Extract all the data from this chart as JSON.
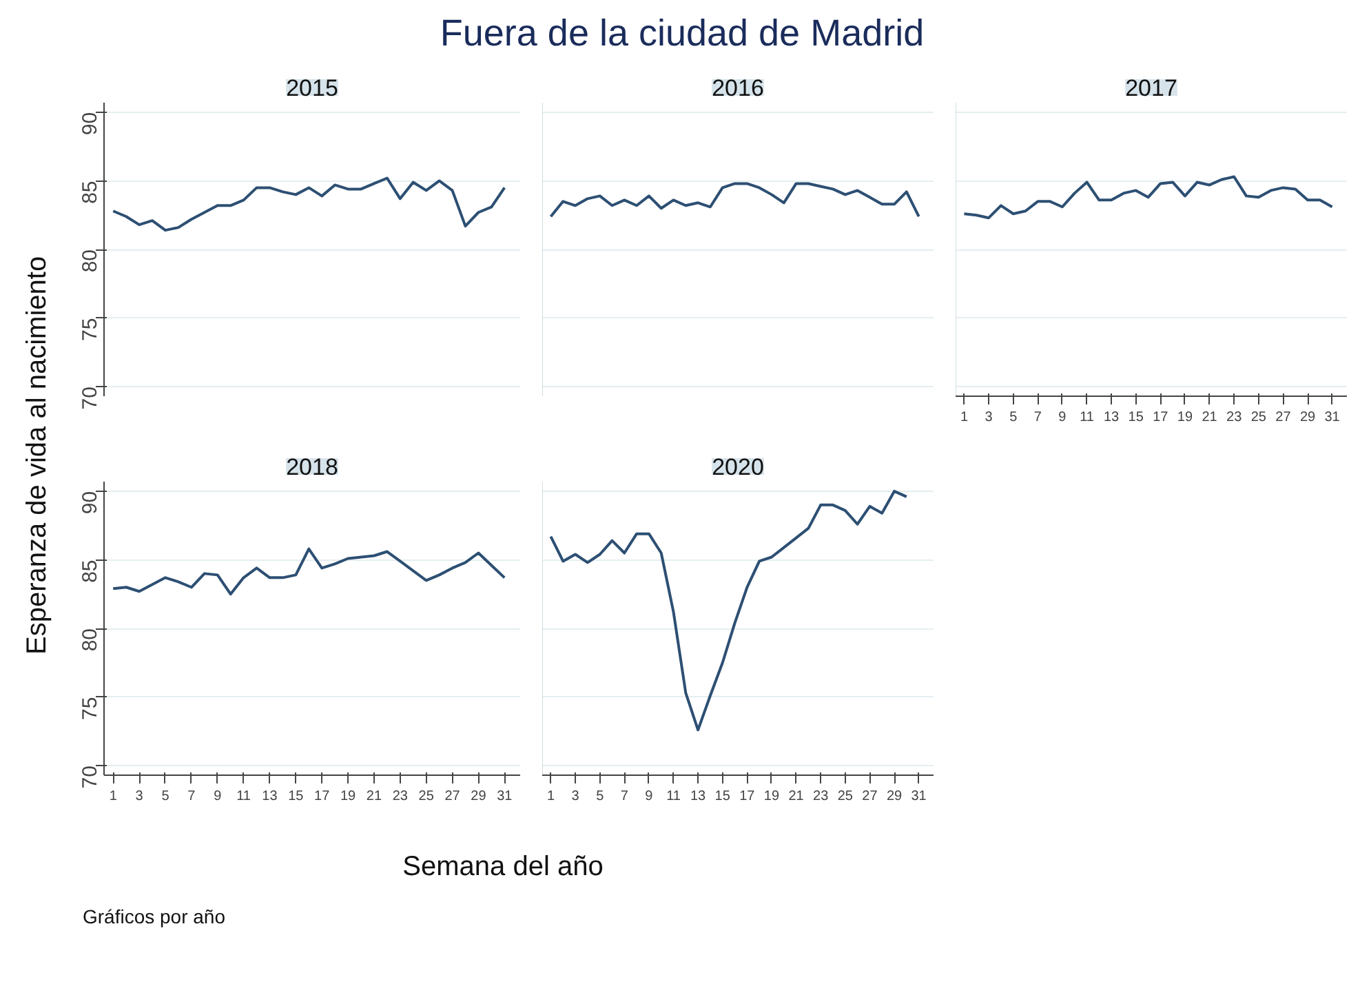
{
  "chart_data": [
    {
      "type": "line",
      "title": "2015",
      "x": [
        1,
        2,
        3,
        4,
        5,
        6,
        7,
        8,
        9,
        10,
        11,
        12,
        13,
        14,
        15,
        16,
        17,
        18,
        19,
        20,
        21,
        22,
        23,
        24,
        25,
        26,
        27,
        28,
        29,
        30,
        31
      ],
      "series": [
        {
          "color": "#2d4f73",
          "values": [
            82.8,
            82.4,
            81.8,
            82.1,
            81.4,
            81.6,
            82.2,
            82.7,
            83.2,
            83.2,
            83.6,
            84.5,
            84.5,
            84.2,
            84.0,
            84.5,
            83.9,
            84.7,
            84.4,
            84.4,
            84.8,
            85.2,
            83.7,
            84.9,
            84.3,
            85.0,
            84.3,
            81.7,
            82.7,
            83.1,
            84.5
          ]
        }
      ],
      "xlim": [
        0.3,
        32.2
      ],
      "ylim": [
        69.3,
        90.7
      ],
      "xticks": [
        1,
        3,
        5,
        7,
        9,
        11,
        13,
        15,
        17,
        19,
        21,
        23,
        25,
        27,
        29,
        31
      ],
      "yticks": [
        70,
        75,
        80,
        85,
        90
      ],
      "grid": "y",
      "tick_labels": "y"
    },
    {
      "type": "line",
      "title": "2016",
      "x": [
        1,
        2,
        3,
        4,
        5,
        6,
        7,
        8,
        9,
        10,
        11,
        12,
        13,
        14,
        15,
        16,
        17,
        18,
        19,
        20,
        21,
        22,
        23,
        24,
        25,
        26,
        27,
        28,
        29,
        30,
        31
      ],
      "series": [
        {
          "color": "#2d4f73",
          "values": [
            82.4,
            83.5,
            83.2,
            83.7,
            83.9,
            83.2,
            83.6,
            83.2,
            83.9,
            83.0,
            83.6,
            83.2,
            83.4,
            83.1,
            84.5,
            84.8,
            84.8,
            84.5,
            84.0,
            83.4,
            84.8,
            84.8,
            84.6,
            84.4,
            84.0,
            84.3,
            83.8,
            83.3,
            83.3,
            84.2,
            82.4
          ]
        }
      ],
      "xlim": [
        0.3,
        32.2
      ],
      "ylim": [
        69.3,
        90.7
      ],
      "xticks": [
        1,
        3,
        5,
        7,
        9,
        11,
        13,
        15,
        17,
        19,
        21,
        23,
        25,
        27,
        29,
        31
      ],
      "yticks": [
        70,
        75,
        80,
        85,
        90
      ],
      "grid": "y",
      "tick_labels": false
    },
    {
      "type": "line",
      "title": "2017",
      "x": [
        1,
        2,
        3,
        4,
        5,
        6,
        7,
        8,
        9,
        10,
        11,
        12,
        13,
        14,
        15,
        16,
        17,
        18,
        19,
        20,
        21,
        22,
        23,
        24,
        25,
        26,
        27,
        28,
        29,
        30,
        31
      ],
      "series": [
        {
          "color": "#2d4f73",
          "values": [
            82.6,
            82.5,
            82.3,
            83.2,
            82.6,
            82.8,
            83.5,
            83.5,
            83.1,
            84.1,
            84.9,
            83.6,
            83.6,
            84.1,
            84.3,
            83.8,
            84.8,
            84.9,
            83.9,
            84.9,
            84.7,
            85.1,
            85.3,
            83.9,
            83.8,
            84.3,
            84.5,
            84.4,
            83.6,
            83.6,
            83.1
          ]
        }
      ],
      "xlim": [
        0.3,
        32.2
      ],
      "ylim": [
        69.3,
        90.7
      ],
      "xticks": [
        1,
        3,
        5,
        7,
        9,
        11,
        13,
        15,
        17,
        19,
        21,
        23,
        25,
        27,
        29,
        31
      ],
      "yticks": [
        70,
        75,
        80,
        85,
        90
      ],
      "grid": "y",
      "tick_labels": "x"
    },
    {
      "type": "line",
      "title": "2018",
      "x": [
        1,
        2,
        3,
        4,
        5,
        6,
        7,
        8,
        9,
        10,
        11,
        12,
        13,
        14,
        15,
        16,
        17,
        18,
        19,
        20,
        21,
        22,
        23,
        24,
        25,
        26,
        27,
        28,
        29,
        30,
        31
      ],
      "series": [
        {
          "color": "#2d4f73",
          "values": [
            82.9,
            83.0,
            82.7,
            83.2,
            83.7,
            83.4,
            83.0,
            84.0,
            83.9,
            82.5,
            83.7,
            84.4,
            83.7,
            83.7,
            83.9,
            85.8,
            84.4,
            84.7,
            85.1,
            85.2,
            85.3,
            85.6,
            84.9,
            84.2,
            83.5,
            83.9,
            84.4,
            84.8,
            85.5,
            84.6,
            83.7
          ]
        }
      ],
      "xlim": [
        0.3,
        32.2
      ],
      "ylim": [
        69.3,
        90.7
      ],
      "xticks": [
        1,
        3,
        5,
        7,
        9,
        11,
        13,
        15,
        17,
        19,
        21,
        23,
        25,
        27,
        29,
        31
      ],
      "yticks": [
        70,
        75,
        80,
        85,
        90
      ],
      "grid": "y"
    },
    {
      "type": "line",
      "title": "2020",
      "x": [
        1,
        2,
        3,
        4,
        5,
        6,
        7,
        8,
        9,
        10,
        11,
        12,
        13,
        14,
        15,
        16,
        17,
        18,
        19,
        20,
        21,
        22,
        23,
        24,
        25,
        26,
        27,
        28,
        29,
        30
      ],
      "series": [
        {
          "color": "#2d4f73",
          "values": [
            86.7,
            84.9,
            85.4,
            84.8,
            85.4,
            86.4,
            85.5,
            86.9,
            86.9,
            85.5,
            81.2,
            75.3,
            72.6,
            75.1,
            77.5,
            80.4,
            83.0,
            84.9,
            85.2,
            85.9,
            86.6,
            87.3,
            89.0,
            89.0,
            88.6,
            87.6,
            88.9,
            88.4,
            90.0,
            89.6
          ]
        }
      ],
      "xlim": [
        0.3,
        32.2
      ],
      "ylim": [
        69.3,
        90.7
      ],
      "xticks": [
        1,
        3,
        5,
        7,
        9,
        11,
        13,
        15,
        17,
        19,
        21,
        23,
        25,
        27,
        29,
        31
      ],
      "yticks": [
        70,
        75,
        80,
        85,
        90
      ],
      "grid": "y",
      "tick_labels": "x"
    },
    {
      "type": "other",
      "title": "Fuera de la ciudad de Madrid",
      "xlabel": "Semana del año",
      "ylabel": "Esperanza de vida al nacimiento",
      "annotations": [
        "Gráficos por año"
      ]
    }
  ]
}
